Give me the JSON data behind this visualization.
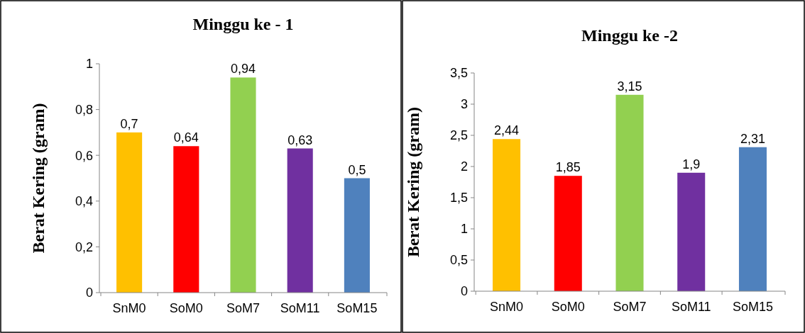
{
  "chart_data": [
    {
      "type": "bar",
      "title": "Minggu ke - 1",
      "ylabel": "Berat Kering (gram)",
      "categories": [
        "SnM0",
        "SoM0",
        "SoM7",
        "SoM11",
        "SoM15"
      ],
      "values": [
        0.7,
        0.64,
        0.94,
        0.63,
        0.5
      ],
      "colors": [
        "#ffc000",
        "#ff0000",
        "#92d050",
        "#7030a0",
        "#4f81bd"
      ],
      "value_labels": [
        "0,7",
        "0,64",
        "0,94",
        "0,63",
        "0,5"
      ],
      "ylim": [
        0,
        1
      ],
      "yticks": [
        0,
        {
          "value": 0.2,
          "label": "0,2"
        },
        {
          "value": 0.4,
          "label": "0,4"
        },
        {
          "value": 0.6,
          "label": "0,6"
        },
        {
          "value": 0.8,
          "label": "0,8"
        },
        1
      ],
      "grid": false
    },
    {
      "type": "bar",
      "title": "Minggu ke -2",
      "ylabel": "Berat Kering (gram)",
      "categories": [
        "SnM0",
        "SoM0",
        "SoM7",
        "SoM11",
        "SoM15"
      ],
      "values": [
        2.44,
        1.85,
        3.15,
        1.9,
        2.31
      ],
      "colors": [
        "#ffc000",
        "#ff0000",
        "#92d050",
        "#7030a0",
        "#4f81bd"
      ],
      "value_labels": [
        "2,44",
        "1,85",
        "3,15",
        "1,9",
        "2,31"
      ],
      "ylim": [
        0,
        3.5
      ],
      "yticks": [
        0,
        {
          "value": 0.5,
          "label": "0,5"
        },
        1,
        {
          "value": 1.5,
          "label": "1,5"
        },
        2,
        {
          "value": 2.5,
          "label": "2,5"
        },
        3,
        {
          "value": 3.5,
          "label": "3,5"
        }
      ],
      "grid": false
    }
  ]
}
